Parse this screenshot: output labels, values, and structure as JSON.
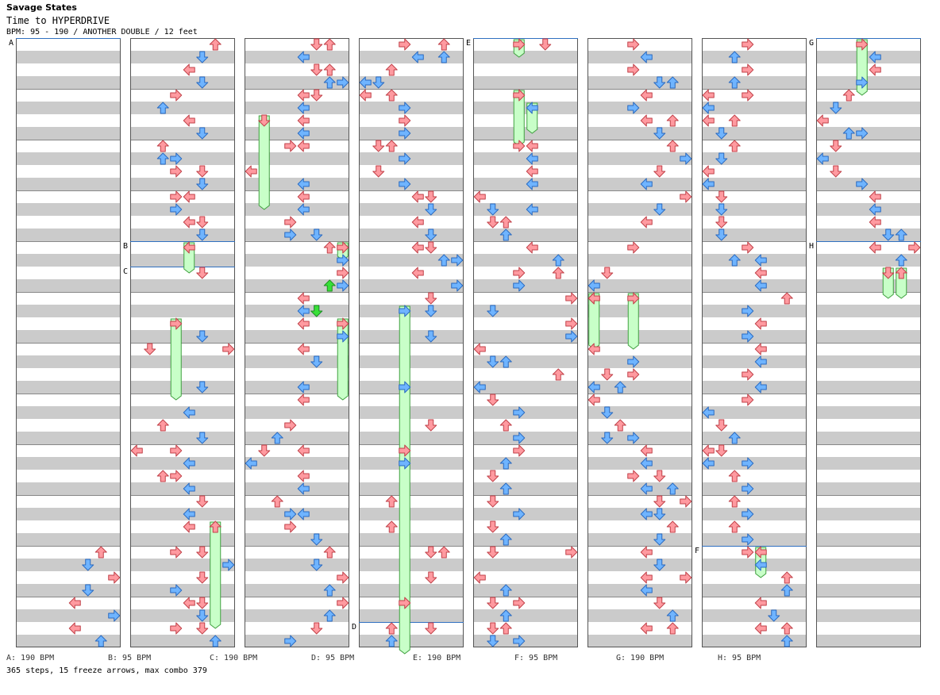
{
  "header": {
    "title": "Savage States",
    "subtitle": "Time to HYPERDRIVE",
    "bpm_line": "BPM: 95 - 190 / ANOTHER DOUBLE / 12 feet"
  },
  "footer": {
    "segments": [
      "A: 190 BPM",
      "B: 95 BPM",
      "C: 190 BPM",
      "D: 95 BPM",
      "E: 190 BPM",
      "F: 95 BPM",
      "G: 190 BPM",
      "H: 95 BPM"
    ],
    "stats": "365 steps, 15 freeze arrows, max combo 379"
  },
  "colors": {
    "red": "#ff9aa0",
    "red_stroke": "#c04048",
    "blue": "#6fb4ff",
    "blue_stroke": "#2a6ac0",
    "green": "#c8ffc8",
    "green_stroke": "#40a040",
    "section_line": "#3070c0"
  },
  "chart_data": {
    "type": "stepchart",
    "title": "Savage States",
    "subtitle": "Time to HYPERDRIVE",
    "difficulty": "ANOTHER DOUBLE",
    "level": "12 feet",
    "bpm_range": [
      95,
      190
    ],
    "columns": 8,
    "measures_per_column": 12,
    "lanes": 8,
    "lane_arrows": [
      "left",
      "down",
      "up",
      "right",
      "left",
      "down",
      "up",
      "right"
    ],
    "section_markers": [
      {
        "label": "A",
        "column": 1,
        "beat": 0
      },
      {
        "label": "B",
        "column": 2,
        "beat": 16
      },
      {
        "label": "C",
        "column": 2,
        "beat": 18
      },
      {
        "label": "D",
        "column": 4,
        "beat": 46
      },
      {
        "label": "E",
        "column": 5,
        "beat": 0
      },
      {
        "label": "F",
        "column": 7,
        "beat": 40
      },
      {
        "label": "G",
        "column": 8,
        "beat": 0
      },
      {
        "label": "H",
        "column": 8,
        "beat": 16
      }
    ],
    "steps": [
      [
        1,
        40,
        6
      ],
      [
        1,
        41,
        5
      ],
      [
        1,
        42,
        7
      ],
      [
        1,
        43,
        5
      ],
      [
        1,
        44,
        4
      ],
      [
        1,
        45,
        7
      ],
      [
        1,
        46,
        4
      ],
      [
        1,
        47,
        6
      ],
      [
        2,
        0,
        6
      ],
      [
        2,
        1,
        5
      ],
      [
        2,
        2,
        4
      ],
      [
        2,
        3,
        5
      ],
      [
        2,
        4,
        3
      ],
      [
        2,
        5,
        2
      ],
      [
        2,
        6,
        4
      ],
      [
        2,
        7,
        5
      ],
      [
        2,
        8,
        2
      ],
      [
        2,
        9,
        2
      ],
      [
        2,
        9,
        3
      ],
      [
        2,
        10,
        3
      ],
      [
        2,
        10,
        5
      ],
      [
        2,
        11,
        5
      ],
      [
        2,
        12,
        3
      ],
      [
        2,
        12,
        4
      ],
      [
        2,
        13,
        3
      ],
      [
        2,
        14,
        4
      ],
      [
        2,
        14,
        5
      ],
      [
        2,
        15,
        5
      ],
      [
        2,
        18,
        5
      ],
      [
        2,
        23,
        5
      ],
      [
        2,
        24,
        1
      ],
      [
        2,
        24,
        7
      ],
      [
        2,
        27,
        5
      ],
      [
        2,
        29,
        4
      ],
      [
        2,
        30,
        2
      ],
      [
        2,
        31,
        5
      ],
      [
        2,
        32,
        0
      ],
      [
        2,
        32,
        3
      ],
      [
        2,
        33,
        4
      ],
      [
        2,
        34,
        2
      ],
      [
        2,
        34,
        3
      ],
      [
        2,
        35,
        4
      ],
      [
        2,
        36,
        5
      ],
      [
        2,
        37,
        4
      ],
      [
        2,
        38,
        4
      ],
      [
        2,
        40,
        5
      ],
      [
        2,
        40,
        3
      ],
      [
        2,
        41,
        7
      ],
      [
        2,
        42,
        5
      ],
      [
        2,
        43,
        3
      ],
      [
        2,
        44,
        4
      ],
      [
        2,
        44,
        5
      ],
      [
        2,
        45,
        5
      ],
      [
        2,
        46,
        3
      ],
      [
        2,
        46,
        5
      ],
      [
        2,
        47,
        6
      ],
      [
        3,
        0,
        5
      ],
      [
        3,
        0,
        6
      ],
      [
        3,
        1,
        4
      ],
      [
        3,
        2,
        5
      ],
      [
        3,
        2,
        6
      ],
      [
        3,
        3,
        7
      ],
      [
        3,
        3,
        6
      ],
      [
        3,
        4,
        5
      ],
      [
        3,
        4,
        4
      ],
      [
        3,
        5,
        4
      ],
      [
        3,
        6,
        4
      ],
      [
        3,
        7,
        4
      ],
      [
        3,
        8,
        3
      ],
      [
        3,
        8,
        4
      ],
      [
        3,
        10,
        0
      ],
      [
        3,
        11,
        4
      ],
      [
        3,
        12,
        4
      ],
      [
        3,
        13,
        4
      ],
      [
        3,
        14,
        3
      ],
      [
        3,
        15,
        3
      ],
      [
        3,
        15,
        5
      ],
      [
        3,
        16,
        6
      ],
      [
        3,
        17,
        7
      ],
      [
        3,
        18,
        7
      ],
      [
        3,
        19,
        7
      ],
      [
        3,
        20,
        4
      ],
      [
        3,
        21,
        4
      ],
      [
        3,
        21,
        5
      ],
      [
        3,
        22,
        4
      ],
      [
        3,
        23,
        7
      ],
      [
        3,
        24,
        4
      ],
      [
        3,
        25,
        5
      ],
      [
        3,
        27,
        4
      ],
      [
        3,
        28,
        4
      ],
      [
        3,
        30,
        3
      ],
      [
        3,
        31,
        2
      ],
      [
        3,
        32,
        1
      ],
      [
        3,
        32,
        4
      ],
      [
        3,
        33,
        0
      ],
      [
        3,
        34,
        4
      ],
      [
        3,
        35,
        4
      ],
      [
        3,
        36,
        2
      ],
      [
        3,
        37,
        3
      ],
      [
        3,
        37,
        4
      ],
      [
        3,
        38,
        3
      ],
      [
        3,
        39,
        5
      ],
      [
        3,
        40,
        6
      ],
      [
        3,
        41,
        5
      ],
      [
        3,
        42,
        7
      ],
      [
        3,
        43,
        6
      ],
      [
        3,
        44,
        7
      ],
      [
        3,
        45,
        6
      ],
      [
        3,
        46,
        5
      ],
      [
        3,
        47,
        3
      ],
      [
        4,
        0,
        3
      ],
      [
        4,
        0,
        6
      ],
      [
        4,
        1,
        4
      ],
      [
        4,
        1,
        6
      ],
      [
        4,
        2,
        2
      ],
      [
        4,
        3,
        0
      ],
      [
        4,
        3,
        1
      ],
      [
        4,
        4,
        0
      ],
      [
        4,
        4,
        2
      ],
      [
        4,
        5,
        3
      ],
      [
        4,
        6,
        3
      ],
      [
        4,
        7,
        3
      ],
      [
        4,
        8,
        1
      ],
      [
        4,
        8,
        2
      ],
      [
        4,
        9,
        3
      ],
      [
        4,
        10,
        1
      ],
      [
        4,
        11,
        3
      ],
      [
        4,
        12,
        4
      ],
      [
        4,
        12,
        5
      ],
      [
        4,
        13,
        5
      ],
      [
        4,
        14,
        4
      ],
      [
        4,
        15,
        5
      ],
      [
        4,
        16,
        4
      ],
      [
        4,
        16,
        5
      ],
      [
        4,
        17,
        6
      ],
      [
        4,
        17,
        7
      ],
      [
        4,
        18,
        4
      ],
      [
        4,
        19,
        7
      ],
      [
        4,
        20,
        5
      ],
      [
        4,
        21,
        5
      ],
      [
        4,
        23,
        5
      ],
      [
        4,
        27,
        3
      ],
      [
        4,
        30,
        5
      ],
      [
        4,
        32,
        3
      ],
      [
        4,
        33,
        3
      ],
      [
        4,
        36,
        2
      ],
      [
        4,
        38,
        2
      ],
      [
        4,
        40,
        5
      ],
      [
        4,
        40,
        6
      ],
      [
        4,
        42,
        5
      ],
      [
        4,
        44,
        3
      ],
      [
        4,
        46,
        2
      ],
      [
        4,
        46,
        5
      ],
      [
        4,
        47,
        2
      ],
      [
        5,
        0,
        5
      ],
      [
        5,
        8,
        3
      ],
      [
        5,
        8,
        4
      ],
      [
        5,
        9,
        4
      ],
      [
        5,
        10,
        4
      ],
      [
        5,
        11,
        4
      ],
      [
        5,
        12,
        0
      ],
      [
        5,
        13,
        1
      ],
      [
        5,
        13,
        4
      ],
      [
        5,
        14,
        1
      ],
      [
        5,
        14,
        2
      ],
      [
        5,
        15,
        2
      ],
      [
        5,
        16,
        4
      ],
      [
        5,
        17,
        6
      ],
      [
        5,
        18,
        3
      ],
      [
        5,
        18,
        6
      ],
      [
        5,
        19,
        3
      ],
      [
        5,
        20,
        7
      ],
      [
        5,
        21,
        1
      ],
      [
        5,
        22,
        7
      ],
      [
        5,
        23,
        7
      ],
      [
        5,
        24,
        0
      ],
      [
        5,
        25,
        1
      ],
      [
        5,
        25,
        2
      ],
      [
        5,
        26,
        6
      ],
      [
        5,
        27,
        0
      ],
      [
        5,
        28,
        1
      ],
      [
        5,
        29,
        3
      ],
      [
        5,
        30,
        2
      ],
      [
        5,
        31,
        3
      ],
      [
        5,
        32,
        3
      ],
      [
        5,
        33,
        2
      ],
      [
        5,
        34,
        1
      ],
      [
        5,
        35,
        2
      ],
      [
        5,
        36,
        1
      ],
      [
        5,
        37,
        3
      ],
      [
        5,
        38,
        1
      ],
      [
        5,
        39,
        2
      ],
      [
        5,
        40,
        1
      ],
      [
        5,
        40,
        7
      ],
      [
        5,
        42,
        0
      ],
      [
        5,
        43,
        2
      ],
      [
        5,
        44,
        1
      ],
      [
        5,
        44,
        3
      ],
      [
        5,
        45,
        2
      ],
      [
        5,
        46,
        1
      ],
      [
        5,
        46,
        2
      ],
      [
        5,
        47,
        1
      ],
      [
        5,
        47,
        3
      ],
      [
        6,
        0,
        3
      ],
      [
        6,
        1,
        4
      ],
      [
        6,
        2,
        3
      ],
      [
        6,
        3,
        5
      ],
      [
        6,
        3,
        6
      ],
      [
        6,
        4,
        4
      ],
      [
        6,
        5,
        3
      ],
      [
        6,
        6,
        4
      ],
      [
        6,
        6,
        6
      ],
      [
        6,
        7,
        5
      ],
      [
        6,
        8,
        6
      ],
      [
        6,
        9,
        7
      ],
      [
        6,
        10,
        5
      ],
      [
        6,
        11,
        4
      ],
      [
        6,
        12,
        7
      ],
      [
        6,
        13,
        5
      ],
      [
        6,
        14,
        4
      ],
      [
        6,
        16,
        3
      ],
      [
        6,
        18,
        1
      ],
      [
        6,
        19,
        0
      ],
      [
        6,
        20,
        0
      ],
      [
        6,
        24,
        0
      ],
      [
        6,
        25,
        3
      ],
      [
        6,
        26,
        1
      ],
      [
        6,
        26,
        3
      ],
      [
        6,
        27,
        0
      ],
      [
        6,
        27,
        2
      ],
      [
        6,
        28,
        0
      ],
      [
        6,
        29,
        1
      ],
      [
        6,
        30,
        2
      ],
      [
        6,
        31,
        1
      ],
      [
        6,
        31,
        3
      ],
      [
        6,
        32,
        4
      ],
      [
        6,
        33,
        4
      ],
      [
        6,
        34,
        3
      ],
      [
        6,
        34,
        5
      ],
      [
        6,
        35,
        4
      ],
      [
        6,
        35,
        6
      ],
      [
        6,
        36,
        7
      ],
      [
        6,
        36,
        5
      ],
      [
        6,
        37,
        4
      ],
      [
        6,
        37,
        5
      ],
      [
        6,
        38,
        6
      ],
      [
        6,
        39,
        5
      ],
      [
        6,
        40,
        4
      ],
      [
        6,
        41,
        5
      ],
      [
        6,
        42,
        4
      ],
      [
        6,
        42,
        7
      ],
      [
        6,
        43,
        4
      ],
      [
        6,
        44,
        5
      ],
      [
        6,
        45,
        6
      ],
      [
        6,
        46,
        4
      ],
      [
        6,
        46,
        6
      ],
      [
        7,
        0,
        3
      ],
      [
        7,
        1,
        2
      ],
      [
        7,
        2,
        3
      ],
      [
        7,
        3,
        2
      ],
      [
        7,
        4,
        0
      ],
      [
        7,
        4,
        3
      ],
      [
        7,
        5,
        0
      ],
      [
        7,
        6,
        0
      ],
      [
        7,
        6,
        2
      ],
      [
        7,
        7,
        1
      ],
      [
        7,
        8,
        2
      ],
      [
        7,
        9,
        1
      ],
      [
        7,
        10,
        0
      ],
      [
        7,
        11,
        0
      ],
      [
        7,
        12,
        1
      ],
      [
        7,
        13,
        1
      ],
      [
        7,
        14,
        1
      ],
      [
        7,
        15,
        1
      ],
      [
        7,
        16,
        3
      ],
      [
        7,
        17,
        2
      ],
      [
        7,
        17,
        4
      ],
      [
        7,
        18,
        4
      ],
      [
        7,
        19,
        4
      ],
      [
        7,
        20,
        6
      ],
      [
        7,
        21,
        3
      ],
      [
        7,
        22,
        4
      ],
      [
        7,
        23,
        3
      ],
      [
        7,
        24,
        4
      ],
      [
        7,
        25,
        4
      ],
      [
        7,
        26,
        3
      ],
      [
        7,
        27,
        4
      ],
      [
        7,
        28,
        3
      ],
      [
        7,
        29,
        0
      ],
      [
        7,
        30,
        1
      ],
      [
        7,
        31,
        2
      ],
      [
        7,
        32,
        0
      ],
      [
        7,
        32,
        1
      ],
      [
        7,
        33,
        0
      ],
      [
        7,
        33,
        3
      ],
      [
        7,
        34,
        2
      ],
      [
        7,
        35,
        3
      ],
      [
        7,
        36,
        2
      ],
      [
        7,
        37,
        3
      ],
      [
        7,
        38,
        2
      ],
      [
        7,
        39,
        3
      ],
      [
        7,
        40,
        3
      ],
      [
        7,
        41,
        4
      ],
      [
        7,
        42,
        6
      ],
      [
        7,
        43,
        6
      ],
      [
        7,
        44,
        4
      ],
      [
        7,
        45,
        5
      ],
      [
        7,
        46,
        4
      ],
      [
        7,
        46,
        6
      ],
      [
        7,
        47,
        6
      ],
      [
        8,
        1,
        4
      ],
      [
        8,
        2,
        4
      ],
      [
        8,
        3,
        3
      ],
      [
        8,
        4,
        2
      ],
      [
        8,
        5,
        1
      ],
      [
        8,
        6,
        0
      ],
      [
        8,
        7,
        2
      ],
      [
        8,
        7,
        3
      ],
      [
        8,
        8,
        1
      ],
      [
        8,
        9,
        0
      ],
      [
        8,
        10,
        1
      ],
      [
        8,
        11,
        3
      ],
      [
        8,
        12,
        4
      ],
      [
        8,
        13,
        4
      ],
      [
        8,
        14,
        4
      ],
      [
        8,
        15,
        5
      ],
      [
        8,
        15,
        6
      ],
      [
        8,
        16,
        4
      ],
      [
        8,
        16,
        7
      ],
      [
        8,
        17,
        6
      ]
    ],
    "freezes": [
      [
        2,
        16,
        18,
        4
      ],
      [
        2,
        22,
        28,
        3
      ],
      [
        2,
        38,
        46,
        6
      ],
      [
        3,
        6,
        13,
        1
      ],
      [
        3,
        16,
        17,
        7
      ],
      [
        3,
        22,
        28,
        7
      ],
      [
        4,
        21,
        48,
        3
      ],
      [
        5,
        0,
        1,
        3
      ],
      [
        5,
        4,
        8,
        3
      ],
      [
        5,
        5,
        7,
        4
      ],
      [
        6,
        20,
        24,
        0
      ],
      [
        6,
        20,
        24,
        3
      ],
      [
        7,
        40,
        42,
        4
      ],
      [
        8,
        0,
        4,
        3
      ],
      [
        8,
        18,
        20,
        5
      ],
      [
        8,
        18,
        20,
        6
      ]
    ],
    "mines": [
      [
        3,
        19,
        6
      ],
      [
        3,
        21,
        5
      ]
    ]
  }
}
